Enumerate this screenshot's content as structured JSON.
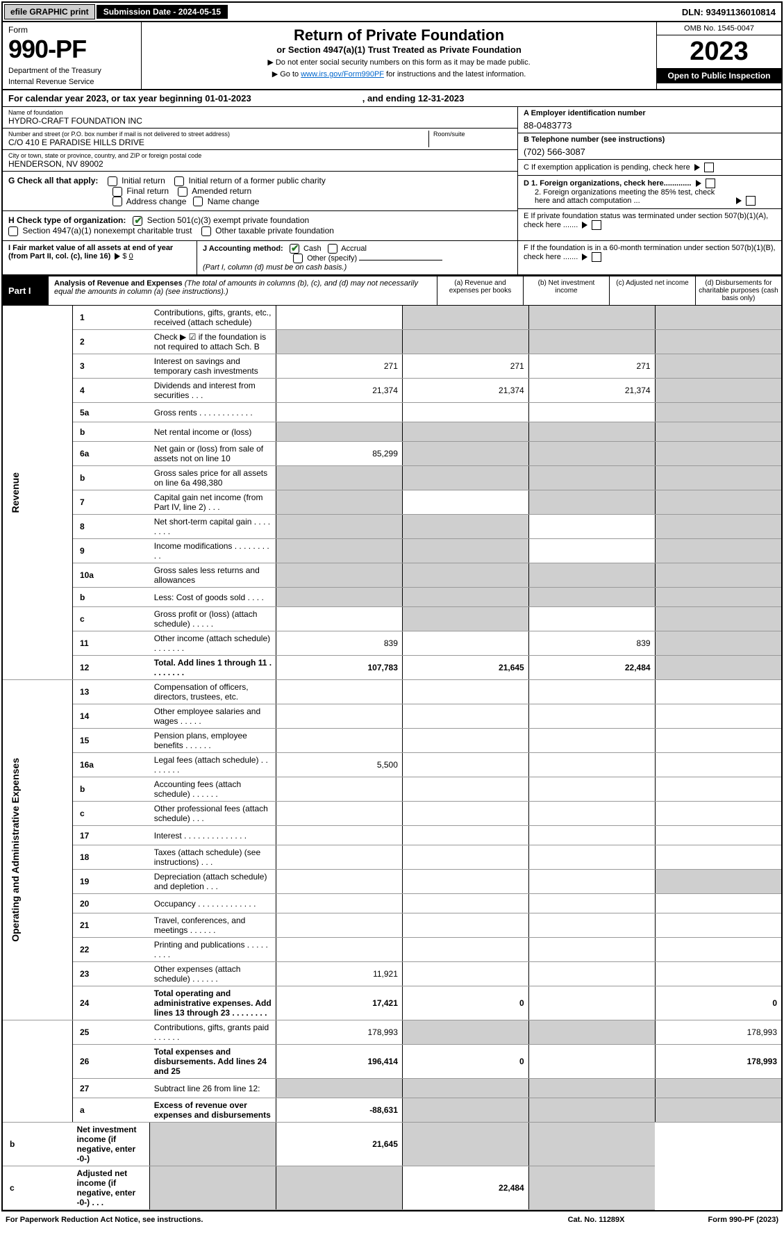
{
  "topbar": {
    "efile": "efile GRAPHIC print",
    "subdate": "Submission Date - 2024-05-15",
    "dln": "DLN: 93491136010814"
  },
  "header": {
    "form": "Form",
    "formnum": "990-PF",
    "dept": "Department of the Treasury",
    "irs": "Internal Revenue Service",
    "title": "Return of Private Foundation",
    "sub": "or Section 4947(a)(1) Trust Treated as Private Foundation",
    "note1": "▶ Do not enter social security numbers on this form as it may be made public.",
    "note2_pre": "▶ Go to ",
    "note2_link": "www.irs.gov/Form990PF",
    "note2_post": " for instructions and the latest information.",
    "omb": "OMB No. 1545-0047",
    "year": "2023",
    "open": "Open to Public Inspection"
  },
  "calyear": {
    "pre": "For calendar year 2023, or tax year beginning 01-01-2023",
    "end": ", and ending 12-31-2023"
  },
  "info": {
    "name_lbl": "Name of foundation",
    "name": "HYDRO-CRAFT FOUNDATION INC",
    "addr_lbl": "Number and street (or P.O. box number if mail is not delivered to street address)",
    "addr": "C/O 410 E PARADISE HILLS DRIVE",
    "room_lbl": "Room/suite",
    "city_lbl": "City or town, state or province, country, and ZIP or foreign postal code",
    "city": "HENDERSON, NV  89002",
    "a_lbl": "A Employer identification number",
    "a_val": "88-0483773",
    "b_lbl": "B Telephone number (see instructions)",
    "b_val": "(702) 566-3087",
    "c_lbl": "C If exemption application is pending, check here",
    "d1": "D 1. Foreign organizations, check here.............",
    "d2": "2. Foreign organizations meeting the 85% test, check here and attach computation ...",
    "e_lbl": "E  If private foundation status was terminated under section 507(b)(1)(A), check here .......",
    "f_lbl": "F  If the foundation is in a 60-month termination under section 507(b)(1)(B), check here ......."
  },
  "g": {
    "label": "G Check all that apply:",
    "o1": "Initial return",
    "o2": "Initial return of a former public charity",
    "o3": "Final return",
    "o4": "Amended return",
    "o5": "Address change",
    "o6": "Name change"
  },
  "h": {
    "label": "H Check type of organization:",
    "o1": "Section 501(c)(3) exempt private foundation",
    "o2": "Section 4947(a)(1) nonexempt charitable trust",
    "o3": "Other taxable private foundation"
  },
  "i": {
    "label": "I Fair market value of all assets at end of year (from Part II, col. (c), line 16)",
    "val": "0"
  },
  "j": {
    "label": "J Accounting method:",
    "o1": "Cash",
    "o2": "Accrual",
    "o3": "Other (specify)",
    "note": "(Part I, column (d) must be on cash basis.)"
  },
  "part1": {
    "label": "Part I",
    "title": "Analysis of Revenue and Expenses",
    "note": " (The total of amounts in columns (b), (c), and (d) may not necessarily equal the amounts in column (a) (see instructions).)",
    "col_a": "(a)   Revenue and expenses per books",
    "col_b": "(b)   Net investment income",
    "col_c": "(c)   Adjusted net income",
    "col_d": "(d)  Disbursements for charitable purposes (cash basis only)"
  },
  "sidelabels": {
    "rev": "Revenue",
    "exp": "Operating and Administrative Expenses"
  },
  "rows": [
    {
      "n": "1",
      "t": "Contributions, gifts, grants, etc., received (attach schedule)",
      "a": "",
      "b": "",
      "c": "",
      "d": "",
      "shade": [
        "b",
        "c",
        "d"
      ]
    },
    {
      "n": "2",
      "t": "Check ▶ ☑ if the foundation is not required to attach Sch. B",
      "a": "",
      "b": "",
      "c": "",
      "d": "",
      "shade": [
        "a",
        "b",
        "c",
        "d"
      ]
    },
    {
      "n": "3",
      "t": "Interest on savings and temporary cash investments",
      "a": "271",
      "b": "271",
      "c": "271",
      "d": "",
      "shade": [
        "d"
      ]
    },
    {
      "n": "4",
      "t": "Dividends and interest from securities   .   .   .",
      "a": "21,374",
      "b": "21,374",
      "c": "21,374",
      "d": "",
      "shade": [
        "d"
      ]
    },
    {
      "n": "5a",
      "t": "Gross rents   .   .   .   .   .   .   .   .   .   .   .   .",
      "a": "",
      "b": "",
      "c": "",
      "d": "",
      "shade": [
        "d"
      ]
    },
    {
      "n": "b",
      "t": "Net rental income or (loss)  ",
      "a": "",
      "b": "",
      "c": "",
      "d": "",
      "shade": [
        "a",
        "b",
        "c",
        "d"
      ]
    },
    {
      "n": "6a",
      "t": "Net gain or (loss) from sale of assets not on line 10",
      "a": "85,299",
      "b": "",
      "c": "",
      "d": "",
      "shade": [
        "b",
        "c",
        "d"
      ]
    },
    {
      "n": "b",
      "t": "Gross sales price for all assets on line 6a            498,380",
      "a": "",
      "b": "",
      "c": "",
      "d": "",
      "shade": [
        "a",
        "b",
        "c",
        "d"
      ]
    },
    {
      "n": "7",
      "t": "Capital gain net income (from Part IV, line 2)   .   .   .",
      "a": "",
      "b": "",
      "c": "",
      "d": "",
      "shade": [
        "a",
        "c",
        "d"
      ]
    },
    {
      "n": "8",
      "t": "Net short-term capital gain  .   .   .   .   .   .   .   .",
      "a": "",
      "b": "",
      "c": "",
      "d": "",
      "shade": [
        "a",
        "b",
        "d"
      ]
    },
    {
      "n": "9",
      "t": "Income modifications  .   .   .   .   .   .   .   .   .   .",
      "a": "",
      "b": "",
      "c": "",
      "d": "",
      "shade": [
        "a",
        "b",
        "d"
      ]
    },
    {
      "n": "10a",
      "t": "Gross sales less returns and allowances",
      "a": "",
      "b": "",
      "c": "",
      "d": "",
      "shade": [
        "a",
        "b",
        "c",
        "d"
      ]
    },
    {
      "n": "b",
      "t": "Less: Cost of goods sold    .   .   .   .",
      "a": "",
      "b": "",
      "c": "",
      "d": "",
      "shade": [
        "a",
        "b",
        "c",
        "d"
      ]
    },
    {
      "n": "c",
      "t": "Gross profit or (loss) (attach schedule)    .   .   .   .   .",
      "a": "",
      "b": "",
      "c": "",
      "d": "",
      "shade": [
        "b",
        "d"
      ]
    },
    {
      "n": "11",
      "t": "Other income (attach schedule)    .   .   .   .   .   .   .",
      "a": "839",
      "b": "",
      "c": "839",
      "d": "",
      "shade": [
        "d"
      ]
    },
    {
      "n": "12",
      "t": "Total. Add lines 1 through 11    .   .   .   .   .   .   .   .",
      "a": "107,783",
      "b": "21,645",
      "c": "22,484",
      "d": "",
      "bold": true,
      "shade": [
        "d"
      ]
    },
    {
      "n": "13",
      "t": "Compensation of officers, directors, trustees, etc.",
      "a": "",
      "b": "",
      "c": "",
      "d": ""
    },
    {
      "n": "14",
      "t": "Other employee salaries and wages   .   .   .   .   .",
      "a": "",
      "b": "",
      "c": "",
      "d": ""
    },
    {
      "n": "15",
      "t": "Pension plans, employee benefits  .   .   .   .   .   .",
      "a": "",
      "b": "",
      "c": "",
      "d": ""
    },
    {
      "n": "16a",
      "t": "Legal fees (attach schedule)  .   .   .   .   .   .   .   .",
      "a": "5,500",
      "b": "",
      "c": "",
      "d": ""
    },
    {
      "n": "b",
      "t": "Accounting fees (attach schedule)  .   .   .   .   .   .",
      "a": "",
      "b": "",
      "c": "",
      "d": ""
    },
    {
      "n": "c",
      "t": "Other professional fees (attach schedule)    .   .   .",
      "a": "",
      "b": "",
      "c": "",
      "d": ""
    },
    {
      "n": "17",
      "t": "Interest  .   .   .   .   .   .   .   .   .   .   .   .   .   .",
      "a": "",
      "b": "",
      "c": "",
      "d": ""
    },
    {
      "n": "18",
      "t": "Taxes (attach schedule) (see instructions)     .   .   .",
      "a": "",
      "b": "",
      "c": "",
      "d": ""
    },
    {
      "n": "19",
      "t": "Depreciation (attach schedule) and depletion    .   .   .",
      "a": "",
      "b": "",
      "c": "",
      "d": "",
      "shade": [
        "d"
      ]
    },
    {
      "n": "20",
      "t": "Occupancy  .   .   .   .   .   .   .   .   .   .   .   .   .",
      "a": "",
      "b": "",
      "c": "",
      "d": ""
    },
    {
      "n": "21",
      "t": "Travel, conferences, and meetings  .   .   .   .   .   .",
      "a": "",
      "b": "",
      "c": "",
      "d": ""
    },
    {
      "n": "22",
      "t": "Printing and publications  .   .   .   .   .   .   .   .   .",
      "a": "",
      "b": "",
      "c": "",
      "d": ""
    },
    {
      "n": "23",
      "t": "Other expenses (attach schedule)  .   .   .   .   .   .",
      "a": "11,921",
      "b": "",
      "c": "",
      "d": ""
    },
    {
      "n": "24",
      "t": "Total operating and administrative expenses. Add lines 13 through 23   .   .   .   .   .   .   .   .",
      "a": "17,421",
      "b": "0",
      "c": "",
      "d": "0",
      "bold": true
    },
    {
      "n": "25",
      "t": "Contributions, gifts, grants paid     .   .   .   .   .   .",
      "a": "178,993",
      "b": "",
      "c": "",
      "d": "178,993",
      "shade": [
        "b",
        "c"
      ]
    },
    {
      "n": "26",
      "t": "Total expenses and disbursements. Add lines 24 and 25",
      "a": "196,414",
      "b": "0",
      "c": "",
      "d": "178,993",
      "bold": true
    },
    {
      "n": "27",
      "t": "Subtract line 26 from line 12:",
      "a": "",
      "b": "",
      "c": "",
      "d": "",
      "shade": [
        "a",
        "b",
        "c",
        "d"
      ]
    },
    {
      "n": "a",
      "t": "Excess of revenue over expenses and disbursements",
      "a": "-88,631",
      "b": "",
      "c": "",
      "d": "",
      "bold": true,
      "shade": [
        "b",
        "c",
        "d"
      ]
    },
    {
      "n": "b",
      "t": "Net investment income (if negative, enter -0-)",
      "a": "",
      "b": "21,645",
      "c": "",
      "d": "",
      "bold": true,
      "shade": [
        "a",
        "c",
        "d"
      ]
    },
    {
      "n": "c",
      "t": "Adjusted net income (if negative, enter -0-)   .   .   .",
      "a": "",
      "b": "",
      "c": "22,484",
      "d": "",
      "bold": true,
      "shade": [
        "a",
        "b",
        "d"
      ]
    }
  ],
  "footer": {
    "left": "For Paperwork Reduction Act Notice, see instructions.",
    "mid": "Cat. No. 11289X",
    "right": "Form 990-PF (2023)"
  }
}
